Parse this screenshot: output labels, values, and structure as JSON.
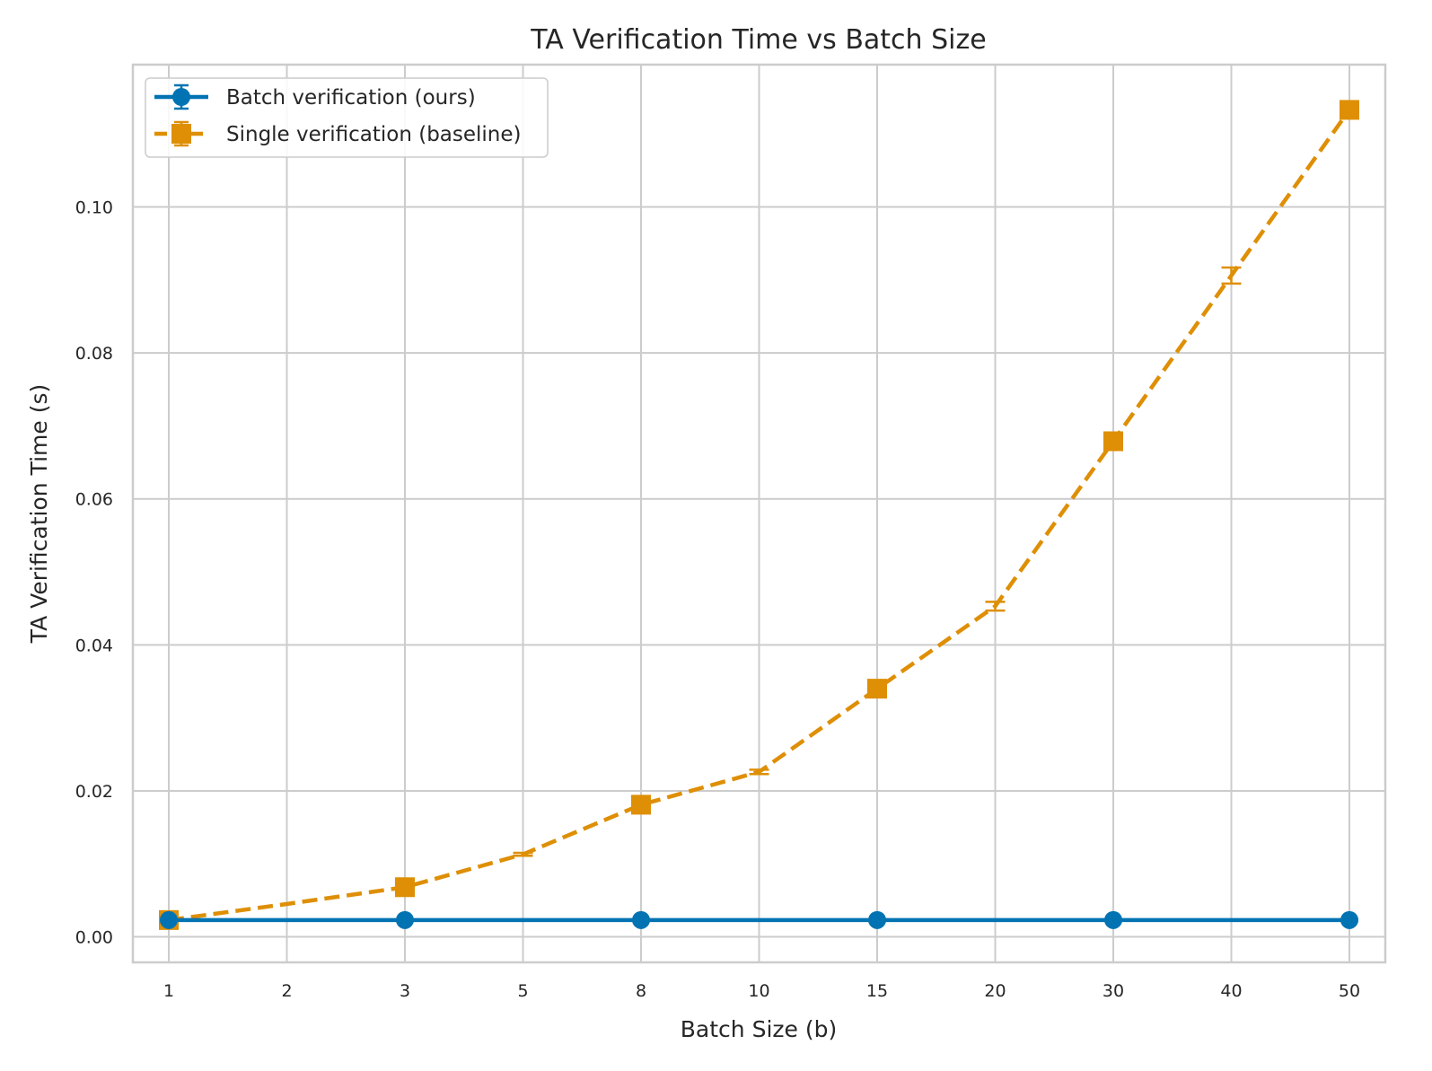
{
  "chart_data": {
    "type": "line",
    "title": "TA Verification Time vs Batch Size",
    "xlabel": "Batch Size (b)",
    "ylabel": "TA Verification Time (s)",
    "categories": [
      "1",
      "2",
      "3",
      "5",
      "8",
      "10",
      "15",
      "20",
      "30",
      "40",
      "50"
    ],
    "ylim": [
      -0.0035,
      0.1195
    ],
    "yticks": [
      0.0,
      0.02,
      0.04,
      0.06,
      0.08,
      0.1
    ],
    "ytick_labels": [
      "0.00",
      "0.02",
      "0.04",
      "0.06",
      "0.08",
      "0.10"
    ],
    "grid": true,
    "legend_position": "top-left",
    "series": [
      {
        "name": "Batch verification (ours)",
        "color": "#0173b2",
        "line_style": "solid",
        "marker": "circle",
        "values": [
          0.0023,
          0.0023,
          0.0023,
          0.0023,
          0.0023,
          0.0023,
          0.0023,
          0.0023,
          0.0023,
          0.0023,
          0.0023
        ],
        "marker_indices": [
          0,
          2,
          4,
          6,
          8,
          10
        ],
        "errors": [
          0,
          0,
          0,
          0,
          0,
          0,
          0,
          0,
          0,
          0,
          0
        ]
      },
      {
        "name": "Single verification (baseline)",
        "color": "#de8f05",
        "line_style": "dashed",
        "marker": "square",
        "values": [
          0.0023,
          0.0045,
          0.0068,
          0.0113,
          0.0181,
          0.0226,
          0.034,
          0.0453,
          0.0679,
          0.0906,
          0.1133
        ],
        "marker_indices": [
          0,
          2,
          4,
          6,
          8,
          10
        ],
        "errors": [
          0,
          0,
          0.0001,
          0.0002,
          0.0002,
          0.0003,
          0.0002,
          0.0006,
          0.0003,
          0.0011,
          0.0003
        ]
      }
    ]
  }
}
